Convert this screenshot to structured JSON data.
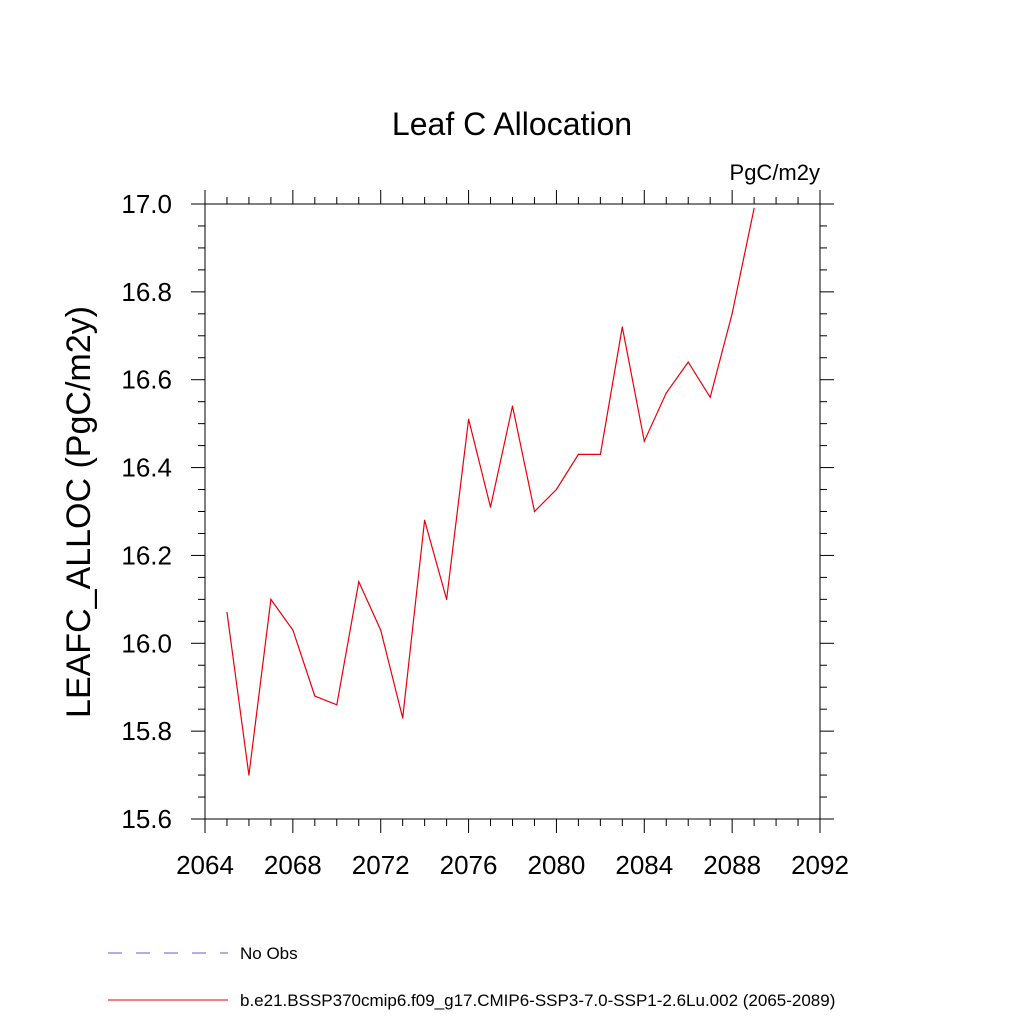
{
  "chart_data": {
    "type": "line",
    "title": "Leaf C Allocation",
    "units_label": "PgC/m2y",
    "ylabel": "LEAFC_ALLOC  (PgC/m2y)",
    "xlabel": "",
    "xlim": [
      2064,
      2092
    ],
    "ylim": [
      15.6,
      17.0
    ],
    "x_ticks": [
      2064,
      2068,
      2072,
      2076,
      2080,
      2084,
      2088,
      2092
    ],
    "y_ticks": [
      "15.6",
      "15.8",
      "16.0",
      "16.2",
      "16.4",
      "16.6",
      "16.8",
      "17.0"
    ],
    "grid": false,
    "legend_position": "bottom",
    "series": [
      {
        "name": "b.e21.BSSP370cmip6.f09_g17.CMIP6-SSP3-7.0-SSP1-2.6Lu.002 (2065-2089)",
        "color": "#e8000b",
        "x": [
          2065,
          2066,
          2067,
          2068,
          2069,
          2070,
          2071,
          2072,
          2073,
          2074,
          2075,
          2076,
          2077,
          2078,
          2079,
          2080,
          2081,
          2082,
          2083,
          2084,
          2085,
          2086,
          2087,
          2088,
          2089
        ],
        "values": [
          16.07,
          15.7,
          16.1,
          16.03,
          15.88,
          15.86,
          16.14,
          16.03,
          15.83,
          16.28,
          16.1,
          16.51,
          16.31,
          16.54,
          16.3,
          16.35,
          16.43,
          16.43,
          16.72,
          16.46,
          16.57,
          16.64,
          16.56,
          16.75,
          16.99
        ]
      }
    ],
    "legend": [
      {
        "label": "No Obs",
        "style": "dashed",
        "color": "#6a5acd"
      },
      {
        "label": "b.e21.BSSP370cmip6.f09_g17.CMIP6-SSP3-7.0-SSP1-2.6Lu.002 (2065-2089)",
        "style": "solid",
        "color": "#e8000b"
      }
    ]
  }
}
